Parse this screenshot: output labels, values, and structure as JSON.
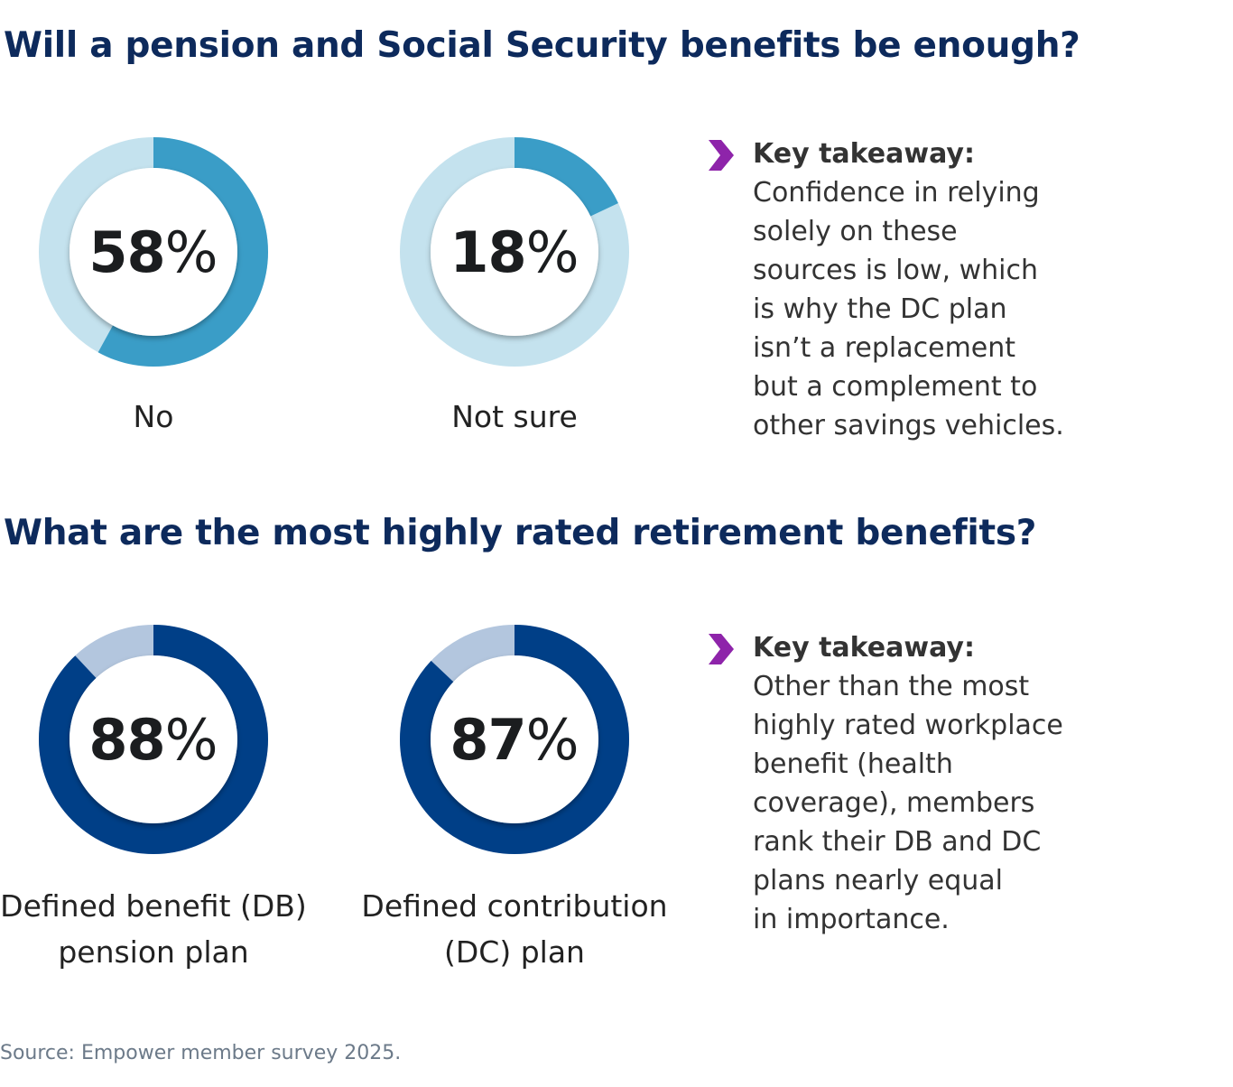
{
  "sections": [
    {
      "title": "Will a pension and Social Security benefits be enough?",
      "takeaway": {
        "heading": "Key takeaway:",
        "lines": [
          "Confidence in relying",
          "solely on these",
          "sources is low, which",
          "is why the DC plan",
          "isn’t a replacement",
          "but a complement to",
          "other savings vehicles."
        ]
      }
    },
    {
      "title": "What are the most highly rated retirement benefits?",
      "takeaway": {
        "heading": "Key takeaway:",
        "lines": [
          "Other than the most",
          "highly rated workplace",
          "benefit (health",
          "coverage), members",
          "rank their DB and DC",
          "plans nearly equal",
          "in importance."
        ]
      }
    }
  ],
  "chart_data": [
    {
      "type": "pie",
      "variant": "donut",
      "value": 58,
      "value_label": "58",
      "unit": "%",
      "label": [
        "No"
      ],
      "color": "#3a9dc7",
      "track_color": "#c4e2ee"
    },
    {
      "type": "pie",
      "variant": "donut",
      "value": 18,
      "value_label": "18",
      "unit": "%",
      "label": [
        "Not sure"
      ],
      "color": "#3a9dc7",
      "track_color": "#c4e2ee"
    },
    {
      "type": "pie",
      "variant": "donut",
      "value": 88,
      "value_label": "88",
      "unit": "%",
      "label": [
        "Defined benefit (DB)",
        "pension plan"
      ],
      "color": "#003f87",
      "track_color": "#b3c6de"
    },
    {
      "type": "pie",
      "variant": "donut",
      "value": 87,
      "value_label": "87",
      "unit": "%",
      "label": [
        "Defined contribution",
        "(DC) plan"
      ],
      "color": "#003f87",
      "track_color": "#b3c6de"
    }
  ],
  "colors": {
    "title": "#0d2a5c",
    "chevron": "#8e24aa"
  },
  "icons": {
    "takeaway": "chevron-right-icon"
  },
  "source": "Source: Empower member survey 2025."
}
